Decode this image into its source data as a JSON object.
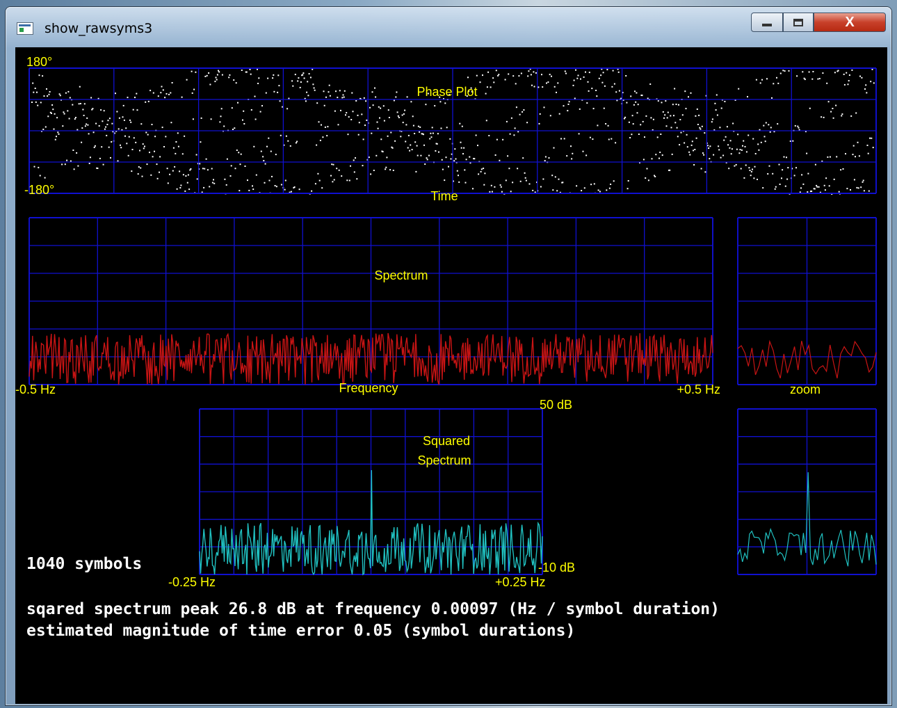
{
  "window": {
    "title": "show_rawsyms3",
    "close_label": "X"
  },
  "phase_plot": {
    "title": "Phase Plot",
    "y_max": "180°",
    "y_min": "-180°",
    "x_label": "Time"
  },
  "spectrum": {
    "title": "Spectrum",
    "x_min": "-0.5 Hz",
    "x_max": "+0.5 Hz",
    "x_label": "Frequency",
    "zoom_label": "zoom"
  },
  "squared_spectrum": {
    "title_line1": "Squared",
    "title_line2": "Spectrum",
    "y_max": "50 dB",
    "y_min": "-10 dB",
    "x_min": "-0.25 Hz",
    "x_max": "+0.25 Hz"
  },
  "info": {
    "symbols": "1040 symbols",
    "peak_line": "sqared spectrum peak 26.8 dB at frequency 0.00097 (Hz / symbol duration)",
    "time_error_line": "estimated magnitude of time error 0.05 (symbol durations)"
  },
  "colors": {
    "grid": "#1010d0",
    "label": "#ffff00",
    "spectrum": "#c81414",
    "squared": "#20c0c0",
    "points": "#ffffff"
  },
  "chart_data": [
    {
      "type": "scatter",
      "title": "Phase Plot",
      "xlabel": "Time",
      "ylabel": "",
      "ylim": [
        -180,
        180
      ],
      "n_points": 1040
    },
    {
      "type": "line",
      "title": "Spectrum",
      "xlabel": "Frequency",
      "xlim": [
        -0.5,
        0.5
      ]
    },
    {
      "type": "line",
      "title": "zoom"
    },
    {
      "type": "line",
      "title": "Squared Spectrum",
      "xlim": [
        -0.25,
        0.25
      ],
      "ylim": [
        -10,
        50
      ],
      "peak": {
        "x": 0.00097,
        "y": 26.8
      }
    }
  ]
}
